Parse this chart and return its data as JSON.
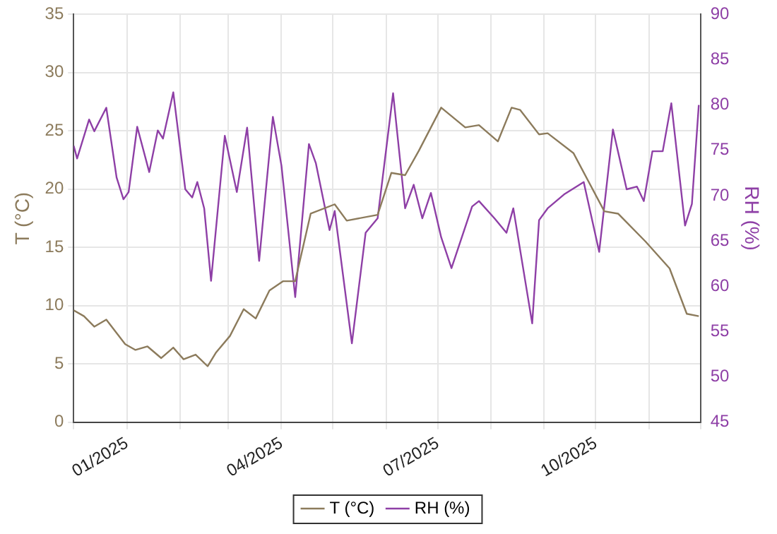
{
  "chart_data": {
    "type": "line",
    "ylabel": "T (°C)",
    "y2label": "RH (%)",
    "xlim": [
      "2024-12-01",
      "2025-12-01"
    ],
    "xticks": [
      {
        "value": "2024-12-01",
        "label": null
      },
      {
        "value": "2025-01-01",
        "label": "01/2025"
      },
      {
        "value": "2025-02-01",
        "label": null
      },
      {
        "value": "2025-03-01",
        "label": null
      },
      {
        "value": "2025-04-01",
        "label": "04/2025"
      },
      {
        "value": "2025-05-01",
        "label": null
      },
      {
        "value": "2025-06-01",
        "label": null
      },
      {
        "value": "2025-07-01",
        "label": "07/2025"
      },
      {
        "value": "2025-08-01",
        "label": null
      },
      {
        "value": "2025-09-01",
        "label": null
      },
      {
        "value": "2025-10-01",
        "label": "10/2025"
      },
      {
        "value": "2025-11-01",
        "label": null
      },
      {
        "value": "2025-12-01",
        "label": null
      }
    ],
    "ylim": [
      0,
      35
    ],
    "yticks": [
      0,
      5,
      10,
      15,
      20,
      25,
      30,
      35
    ],
    "y2lim": [
      45,
      90
    ],
    "y2ticks": [
      45,
      50,
      55,
      60,
      65,
      70,
      75,
      80,
      85,
      90
    ],
    "grid": true,
    "legend": "bottom",
    "marker": "none",
    "line_style": "solid",
    "series": [
      {
        "name": "T (°C)",
        "color": "#8c7b5c",
        "x": [
          "2024-12-01",
          "2024-12-07",
          "2024-12-13",
          "2024-12-20",
          "2024-12-31",
          "2025-01-06",
          "2025-01-13",
          "2025-01-21",
          "2025-01-28",
          "2025-02-03",
          "2025-02-10",
          "2025-02-17",
          "2025-02-22",
          "2025-03-02",
          "2025-03-10",
          "2025-03-17",
          "2025-03-25",
          "2025-04-02",
          "2025-04-09",
          "2025-04-18",
          "2025-05-02",
          "2025-05-09",
          "2025-05-27",
          "2025-06-04",
          "2025-06-12",
          "2025-06-20",
          "2025-07-03",
          "2025-07-17",
          "2025-07-25",
          "2025-08-05",
          "2025-08-13",
          "2025-08-18",
          "2025-08-29",
          "2025-09-03",
          "2025-09-18",
          "2025-10-06",
          "2025-10-14",
          "2025-10-30",
          "2025-11-13",
          "2025-11-23",
          "2025-11-30"
        ],
        "values": [
          9.6,
          9.1,
          8.2,
          8.8,
          6.7,
          6.2,
          6.5,
          5.5,
          6.4,
          5.4,
          5.8,
          4.8,
          6.0,
          7.4,
          9.7,
          8.9,
          11.3,
          12.1,
          12.1,
          17.9,
          18.7,
          17.3,
          17.8,
          21.4,
          21.2,
          23.3,
          27.0,
          25.3,
          25.5,
          24.1,
          27.0,
          26.8,
          24.7,
          24.8,
          23.1,
          18.1,
          17.9,
          15.5,
          13.2,
          9.3,
          9.1
        ]
      },
      {
        "name": "RH (%)",
        "color": "#8e3fa6",
        "axis": "y2",
        "x": [
          "2024-12-01",
          "2024-12-03",
          "2024-12-10",
          "2024-12-13",
          "2024-12-20",
          "2024-12-26",
          "2024-12-30",
          "2025-01-02",
          "2025-01-07",
          "2025-01-14",
          "2025-01-19",
          "2025-01-22",
          "2025-01-28",
          "2025-02-04",
          "2025-02-08",
          "2025-02-11",
          "2025-02-15",
          "2025-02-19",
          "2025-02-27",
          "2025-03-06",
          "2025-03-12",
          "2025-03-19",
          "2025-03-27",
          "2025-04-01",
          "2025-04-09",
          "2025-04-17",
          "2025-04-21",
          "2025-04-29",
          "2025-05-02",
          "2025-05-12",
          "2025-05-20",
          "2025-05-27",
          "2025-06-05",
          "2025-06-12",
          "2025-06-17",
          "2025-06-22",
          "2025-06-27",
          "2025-07-03",
          "2025-07-09",
          "2025-07-21",
          "2025-07-25",
          "2025-08-03",
          "2025-08-10",
          "2025-08-14",
          "2025-08-25",
          "2025-08-29",
          "2025-09-03",
          "2025-09-13",
          "2025-09-24",
          "2025-10-03",
          "2025-10-11",
          "2025-10-19",
          "2025-10-25",
          "2025-10-29",
          "2025-11-03",
          "2025-11-09",
          "2025-11-14",
          "2025-11-22",
          "2025-11-26",
          "2025-11-30"
        ],
        "values": [
          75.5,
          74.1,
          78.4,
          77.1,
          79.7,
          72.0,
          69.6,
          70.4,
          77.6,
          72.6,
          77.2,
          76.3,
          81.4,
          70.7,
          69.8,
          71.5,
          68.6,
          60.6,
          76.6,
          70.4,
          77.5,
          62.8,
          78.7,
          73.3,
          58.8,
          75.7,
          73.6,
          66.2,
          68.3,
          53.7,
          65.9,
          67.5,
          81.3,
          68.6,
          71.2,
          67.5,
          70.3,
          65.4,
          62.0,
          68.8,
          69.4,
          67.5,
          65.9,
          68.6,
          55.9,
          67.3,
          68.6,
          70.2,
          71.5,
          63.8,
          77.3,
          70.7,
          71.0,
          69.4,
          74.9,
          74.9,
          80.2,
          66.7,
          69.1,
          80.0
        ]
      }
    ]
  }
}
